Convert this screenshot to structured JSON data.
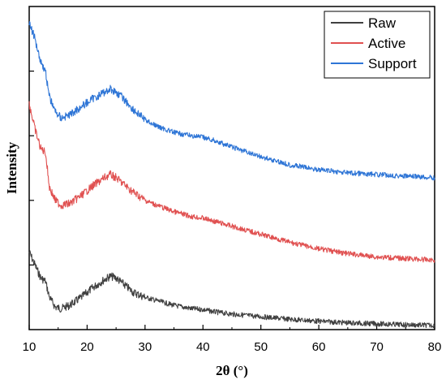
{
  "chart_data": {
    "type": "line",
    "xlabel": "2θ (°)",
    "ylabel": "Intensity",
    "xlim": [
      10,
      80
    ],
    "ylim": [
      0,
      1
    ],
    "x_ticks": [
      "10",
      "20",
      "30",
      "40",
      "50",
      "60",
      "70",
      "80"
    ],
    "legend_position": "top-right",
    "grid": false,
    "series": [
      {
        "name": "Raw",
        "color": "#404040",
        "x": [
          10,
          11,
          12,
          12.8,
          13.5,
          14.5,
          15.5,
          17,
          19,
          21,
          23,
          24,
          25,
          26,
          27,
          28,
          30,
          32,
          35,
          38,
          40,
          42,
          45,
          50,
          55,
          60,
          65,
          70,
          75,
          80
        ],
        "y": [
          0.24,
          0.2,
          0.16,
          0.15,
          0.1,
          0.07,
          0.065,
          0.075,
          0.1,
          0.13,
          0.155,
          0.165,
          0.16,
          0.145,
          0.13,
          0.115,
          0.1,
          0.09,
          0.075,
          0.065,
          0.062,
          0.055,
          0.048,
          0.04,
          0.032,
          0.026,
          0.021,
          0.018,
          0.015,
          0.013
        ]
      },
      {
        "name": "Active",
        "color": "#e05050",
        "x": [
          10,
          11,
          12,
          12.8,
          13.5,
          14.5,
          15.5,
          17,
          19,
          21,
          23,
          24,
          25,
          26,
          27,
          28,
          30,
          32,
          35,
          38,
          40,
          42,
          45,
          50,
          55,
          60,
          65,
          70,
          75,
          80
        ],
        "y": [
          0.7,
          0.62,
          0.56,
          0.55,
          0.44,
          0.4,
          0.385,
          0.39,
          0.415,
          0.445,
          0.47,
          0.48,
          0.47,
          0.455,
          0.44,
          0.425,
          0.4,
          0.385,
          0.365,
          0.35,
          0.345,
          0.335,
          0.32,
          0.295,
          0.27,
          0.25,
          0.235,
          0.225,
          0.22,
          0.215
        ]
      },
      {
        "name": "Support",
        "color": "#2e75d6",
        "x": [
          10,
          11,
          12,
          12.8,
          13.5,
          14.5,
          15.5,
          17,
          19,
          21,
          23,
          24,
          25,
          26,
          27,
          28,
          30,
          32,
          35,
          38,
          40,
          42,
          45,
          50,
          55,
          60,
          65,
          70,
          75,
          80
        ],
        "y": [
          0.95,
          0.9,
          0.83,
          0.8,
          0.72,
          0.675,
          0.655,
          0.665,
          0.69,
          0.715,
          0.735,
          0.745,
          0.735,
          0.72,
          0.7,
          0.68,
          0.65,
          0.63,
          0.61,
          0.6,
          0.595,
          0.585,
          0.565,
          0.535,
          0.51,
          0.495,
          0.485,
          0.48,
          0.475,
          0.47
        ]
      }
    ]
  }
}
